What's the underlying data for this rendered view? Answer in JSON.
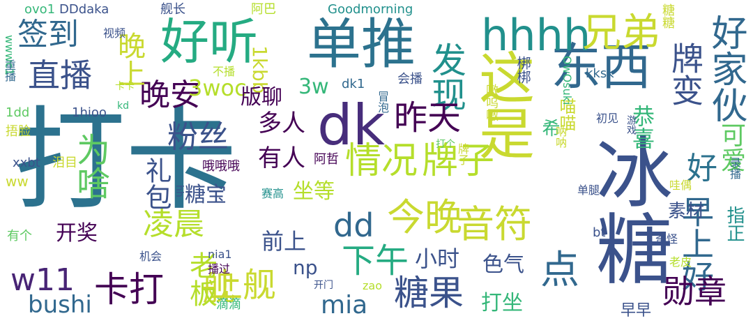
{
  "palette": {
    "background": "#ffffff",
    "dark_purple": "#440154",
    "indigo": "#3b528b",
    "blue": "#31688e",
    "teal": "#21908c",
    "green": "#35b779",
    "light_green": "#5ec962",
    "lime": "#b5de2b",
    "yellow": "#c9d930"
  },
  "words": [
    {
      "text": "打卡",
      "color": "#2c728e"
    },
    {
      "text": "冰糖",
      "color": "#3b528b"
    },
    {
      "text": "dk",
      "color": "#472d7b"
    },
    {
      "text": "单推",
      "color": "#2c728e"
    },
    {
      "text": "好听",
      "color": "#25ab82"
    },
    {
      "text": "东西",
      "color": "#31688e"
    },
    {
      "text": "这是",
      "color": "#c9d930"
    },
    {
      "text": "hhhh",
      "color": "#21908c"
    },
    {
      "text": "兄弟",
      "color": "#c9d930"
    },
    {
      "text": "好家伙",
      "color": "#31688e"
    },
    {
      "text": "牌变",
      "color": "#3b528b"
    },
    {
      "text": "签到",
      "color": "#31688e"
    },
    {
      "text": "直播",
      "color": "#3b528b"
    },
    {
      "text": "晚安",
      "color": "#440154"
    },
    {
      "text": "晚上",
      "color": "#c9d930"
    },
    {
      "text": "发现",
      "color": "#21908c"
    },
    {
      "text": "情况",
      "color": "#b5de2b"
    },
    {
      "text": "牌子",
      "color": "#b5de2b"
    },
    {
      "text": "好",
      "color": "#2c728e"
    },
    {
      "text": "早上好",
      "color": "#31688e"
    },
    {
      "text": "可爱",
      "color": "#5ec962"
    },
    {
      "text": "今晚",
      "color": "#c9d930"
    },
    {
      "text": "音符",
      "color": "#c9d930"
    },
    {
      "text": "dd",
      "color": "#31688e"
    },
    {
      "text": "为啥",
      "color": "#5ec962"
    },
    {
      "text": "凌晨",
      "color": "#b5de2b"
    },
    {
      "text": "粉丝",
      "color": "#3b528b"
    },
    {
      "text": "礼包",
      "color": "#3b528b"
    },
    {
      "text": "昨天",
      "color": "#440154"
    },
    {
      "text": "舰",
      "color": "#c9d930"
    },
    {
      "text": "上舰",
      "color": "#c9d930"
    },
    {
      "text": "w11",
      "color": "#482475"
    },
    {
      "text": "卡打",
      "color": "#440154"
    },
    {
      "text": "老板",
      "color": "#b5de2b"
    },
    {
      "text": "点",
      "color": "#31688e"
    },
    {
      "text": "勋章",
      "color": "#440154"
    },
    {
      "text": "糖果",
      "color": "#3b528b"
    },
    {
      "text": "下午",
      "color": "#25ab82"
    },
    {
      "text": "mia",
      "color": "#31688e"
    },
    {
      "text": "bushi",
      "color": "#31688e"
    },
    {
      "text": "np",
      "color": "#3b528b"
    },
    {
      "text": "3woc",
      "color": "#b5de2b"
    },
    {
      "text": "1kbb",
      "color": "#c9d930"
    },
    {
      "text": "版聊",
      "color": "#440154"
    },
    {
      "text": "3w",
      "color": "#35b779"
    },
    {
      "text": "多人",
      "color": "#440154"
    },
    {
      "text": "有人",
      "color": "#440154"
    },
    {
      "text": "坐等",
      "color": "#b5de2b"
    },
    {
      "text": "糖宝",
      "color": "#3b528b"
    },
    {
      "text": "开奖",
      "color": "#440154"
    },
    {
      "text": "前上",
      "color": "#3b528b"
    },
    {
      "text": "小时",
      "color": "#3b528b"
    },
    {
      "text": "色气",
      "color": "#3b528b"
    },
    {
      "text": "打坐",
      "color": "#35b779"
    },
    {
      "text": "希",
      "color": "#35b779"
    },
    {
      "text": "喵喵",
      "color": "#c9d930"
    },
    {
      "text": "恭喜",
      "color": "#35b779"
    },
    {
      "text": "素材",
      "color": "#3b528b"
    },
    {
      "text": "早早",
      "color": "#3b528b"
    },
    {
      "text": "指正",
      "color": "#21908c"
    },
    {
      "text": "Goodmorning",
      "color": "#21908c"
    },
    {
      "text": "ovo1",
      "color": "#35b779"
    },
    {
      "text": "DDdaka",
      "color": "#3b528b"
    },
    {
      "text": "舰长",
      "color": "#3b528b"
    },
    {
      "text": "阿巴",
      "color": "#b5de2b"
    },
    {
      "text": "糖糖",
      "color": "#c9d930"
    },
    {
      "text": "梆梆",
      "color": "#3b528b"
    },
    {
      "text": "视频",
      "color": "#3b528b"
    },
    {
      "text": "不播",
      "color": "#b5de2b"
    },
    {
      "text": "会播",
      "color": "#3b528b"
    },
    {
      "text": "冒泡",
      "color": "#31688e"
    },
    {
      "text": "dk1",
      "color": "#31688e"
    },
    {
      "text": "OwOsuki",
      "color": "#35b779"
    },
    {
      "text": "kksk",
      "color": "#31688e"
    },
    {
      "text": "嗷呜嗷",
      "color": "#c9d930"
    },
    {
      "text": "重播",
      "color": "#31688e"
    },
    {
      "text": "wwwc1",
      "color": "#35b779"
    },
    {
      "text": "1dd",
      "color": "#5ec962"
    },
    {
      "text": "1hioo",
      "color": "#3b528b"
    },
    {
      "text": "卡卡",
      "color": "#b5de2b"
    },
    {
      "text": "kd",
      "color": "#35b779"
    },
    {
      "text": "初见",
      "color": "#3b528b"
    },
    {
      "text": "游戏",
      "color": "#3b528b"
    },
    {
      "text": "捂脸",
      "color": "#c9d930"
    },
    {
      "text": "打个",
      "color": "#5ec962"
    },
    {
      "text": "阿哲",
      "color": "#440154"
    },
    {
      "text": "哦哦哦",
      "color": "#440154"
    },
    {
      "text": "牌子",
      "color": "#c9d930"
    },
    {
      "text": "呐呐",
      "color": "#c9d930"
    },
    {
      "text": "录播",
      "color": "#31688e"
    },
    {
      "text": "xxbt",
      "color": "#3b528b"
    },
    {
      "text": "泪目",
      "color": "#c9d930"
    },
    {
      "text": "ww",
      "color": "#c9d930"
    },
    {
      "text": "hh",
      "color": "#3b528b"
    },
    {
      "text": "赛高",
      "color": "#21908c"
    },
    {
      "text": "单腿",
      "color": "#3b528b"
    },
    {
      "text": "哇偶",
      "color": "#c9d930"
    },
    {
      "text": "奇怪",
      "color": "#3b528b"
    },
    {
      "text": "bt",
      "color": "#3b528b"
    },
    {
      "text": "有个",
      "color": "#5ec962"
    },
    {
      "text": "机会",
      "color": "#3b528b"
    },
    {
      "text": "nia1",
      "color": "#3b528b"
    },
    {
      "text": "播过",
      "color": "#440154"
    },
    {
      "text": "开门",
      "color": "#3b528b"
    },
    {
      "text": "zao",
      "color": "#b5de2b"
    },
    {
      "text": "滴滴",
      "color": "#35b779"
    },
    {
      "text": "老皮",
      "color": "#b5de2b"
    }
  ]
}
